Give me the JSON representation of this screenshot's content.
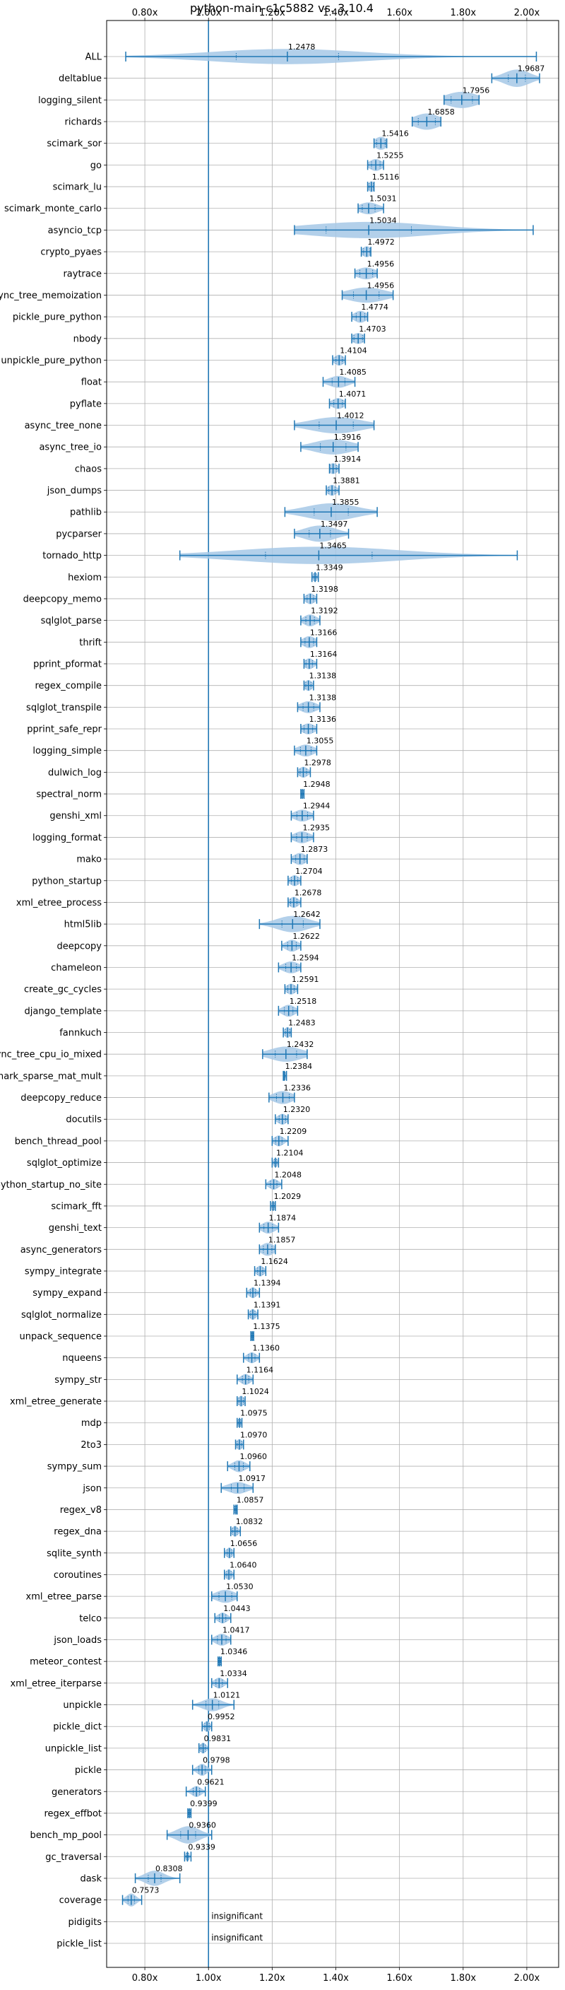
{
  "chart_data": {
    "type": "violin",
    "title": "python-main-c1c5882 vs. 3.10.4",
    "xlabel": "",
    "ylabel": "",
    "xlim": [
      0.68,
      2.1
    ],
    "xticks": [
      0.8,
      1.0,
      1.2,
      1.4,
      1.6,
      1.8,
      2.0
    ],
    "xtick_labels": [
      "0.80x",
      "1.00x",
      "1.20x",
      "1.40x",
      "1.60x",
      "1.80x",
      "2.00x"
    ],
    "xticks_top": true,
    "xticks_bottom": true,
    "grid": true,
    "reference_line": 1.0,
    "accent_color": "#1f77b4",
    "violin_color": "#a6c8e6",
    "note_text": "insignificant",
    "benchmarks": [
      {
        "name": "ALL",
        "value": 1.2478,
        "label": "1.2478",
        "lo": 0.74,
        "hi": 2.03,
        "spread": 0.24,
        "width": 0.7
      },
      {
        "name": "deltablue",
        "value": 1.9687,
        "label": "1.9687",
        "lo": 1.89,
        "hi": 2.04,
        "spread": 0.04,
        "width": 0.8
      },
      {
        "name": "logging_silent",
        "value": 1.7956,
        "label": "1.7956",
        "lo": 1.74,
        "hi": 1.85,
        "spread": 0.05,
        "width": 0.75
      },
      {
        "name": "richards",
        "value": 1.6858,
        "label": "1.6858",
        "lo": 1.64,
        "hi": 1.73,
        "spread": 0.04,
        "width": 0.75
      },
      {
        "name": "scimark_sor",
        "value": 1.5416,
        "label": "1.5416",
        "lo": 1.52,
        "hi": 1.56,
        "spread": 0.02,
        "width": 0.6
      },
      {
        "name": "go",
        "value": 1.5255,
        "label": "1.5255",
        "lo": 1.5,
        "hi": 1.55,
        "spread": 0.02,
        "width": 0.55
      },
      {
        "name": "scimark_lu",
        "value": 1.5116,
        "label": "1.5116",
        "lo": 1.5,
        "hi": 1.52,
        "spread": 0.01,
        "width": 0.5
      },
      {
        "name": "scimark_monte_carlo",
        "value": 1.5031,
        "label": "1.5031",
        "lo": 1.47,
        "hi": 1.55,
        "spread": 0.03,
        "width": 0.55
      },
      {
        "name": "asyncio_tcp",
        "value": 1.5034,
        "label": "1.5034",
        "lo": 1.27,
        "hi": 2.02,
        "spread": 0.2,
        "width": 0.75
      },
      {
        "name": "crypto_pyaes",
        "value": 1.4972,
        "label": "1.4972",
        "lo": 1.48,
        "hi": 1.51,
        "spread": 0.015,
        "width": 0.5
      },
      {
        "name": "raytrace",
        "value": 1.4956,
        "label": "1.4956",
        "lo": 1.46,
        "hi": 1.53,
        "spread": 0.03,
        "width": 0.55
      },
      {
        "name": "async_tree_memoization",
        "value": 1.4956,
        "label": "1.4956",
        "lo": 1.42,
        "hi": 1.58,
        "spread": 0.06,
        "width": 0.7
      },
      {
        "name": "pickle_pure_python",
        "value": 1.4774,
        "label": "1.4774",
        "lo": 1.45,
        "hi": 1.5,
        "spread": 0.02,
        "width": 0.55
      },
      {
        "name": "nbody",
        "value": 1.4703,
        "label": "1.4703",
        "lo": 1.45,
        "hi": 1.49,
        "spread": 0.02,
        "width": 0.5
      },
      {
        "name": "unpickle_pure_python",
        "value": 1.4104,
        "label": "1.4104",
        "lo": 1.39,
        "hi": 1.43,
        "spread": 0.015,
        "width": 0.5
      },
      {
        "name": "float",
        "value": 1.4085,
        "label": "1.4085",
        "lo": 1.36,
        "hi": 1.46,
        "spread": 0.03,
        "width": 0.55
      },
      {
        "name": "pyflate",
        "value": 1.4071,
        "label": "1.4071",
        "lo": 1.38,
        "hi": 1.43,
        "spread": 0.02,
        "width": 0.5
      },
      {
        "name": "async_tree_none",
        "value": 1.4012,
        "label": "1.4012",
        "lo": 1.27,
        "hi": 1.52,
        "spread": 0.08,
        "width": 0.75
      },
      {
        "name": "async_tree_io",
        "value": 1.3916,
        "label": "1.3916",
        "lo": 1.29,
        "hi": 1.47,
        "spread": 0.06,
        "width": 0.7
      },
      {
        "name": "chaos",
        "value": 1.3914,
        "label": "1.3914",
        "lo": 1.38,
        "hi": 1.41,
        "spread": 0.015,
        "width": 0.5
      },
      {
        "name": "json_dumps",
        "value": 1.3881,
        "label": "1.3881",
        "lo": 1.37,
        "hi": 1.41,
        "spread": 0.015,
        "width": 0.5
      },
      {
        "name": "pathlib",
        "value": 1.3855,
        "label": "1.3855",
        "lo": 1.24,
        "hi": 1.53,
        "spread": 0.08,
        "width": 0.8
      },
      {
        "name": "pycparser",
        "value": 1.3497,
        "label": "1.3497",
        "lo": 1.27,
        "hi": 1.44,
        "spread": 0.05,
        "width": 0.75
      },
      {
        "name": "tornado_http",
        "value": 1.3465,
        "label": "1.3465",
        "lo": 0.91,
        "hi": 1.97,
        "spread": 0.25,
        "width": 0.8
      },
      {
        "name": "hexiom",
        "value": 1.3349,
        "label": "1.3349",
        "lo": 1.325,
        "hi": 1.345,
        "spread": 0.006,
        "width": 0.45
      },
      {
        "name": "deepcopy_memo",
        "value": 1.3198,
        "label": "1.3198",
        "lo": 1.3,
        "hi": 1.34,
        "spread": 0.015,
        "width": 0.5
      },
      {
        "name": "sqlglot_parse",
        "value": 1.3192,
        "label": "1.3192",
        "lo": 1.29,
        "hi": 1.35,
        "spread": 0.02,
        "width": 0.55
      },
      {
        "name": "thrift",
        "value": 1.3166,
        "label": "1.3166",
        "lo": 1.29,
        "hi": 1.34,
        "spread": 0.02,
        "width": 0.55
      },
      {
        "name": "pprint_pformat",
        "value": 1.3164,
        "label": "1.3164",
        "lo": 1.3,
        "hi": 1.34,
        "spread": 0.015,
        "width": 0.5
      },
      {
        "name": "regex_compile",
        "value": 1.3138,
        "label": "1.3138",
        "lo": 1.3,
        "hi": 1.33,
        "spread": 0.012,
        "width": 0.5
      },
      {
        "name": "sqlglot_transpile",
        "value": 1.3138,
        "label": "1.3138",
        "lo": 1.28,
        "hi": 1.35,
        "spread": 0.025,
        "width": 0.55
      },
      {
        "name": "pprint_safe_repr",
        "value": 1.3136,
        "label": "1.3136",
        "lo": 1.29,
        "hi": 1.34,
        "spread": 0.02,
        "width": 0.5
      },
      {
        "name": "logging_simple",
        "value": 1.3055,
        "label": "1.3055",
        "lo": 1.27,
        "hi": 1.34,
        "spread": 0.025,
        "width": 0.55
      },
      {
        "name": "dulwich_log",
        "value": 1.2978,
        "label": "1.2978",
        "lo": 1.28,
        "hi": 1.32,
        "spread": 0.015,
        "width": 0.5
      },
      {
        "name": "spectral_norm",
        "value": 1.2948,
        "label": "1.2948",
        "lo": 1.29,
        "hi": 1.3,
        "spread": 0.004,
        "width": 0.45
      },
      {
        "name": "genshi_xml",
        "value": 1.2944,
        "label": "1.2944",
        "lo": 1.26,
        "hi": 1.33,
        "spread": 0.025,
        "width": 0.55
      },
      {
        "name": "logging_format",
        "value": 1.2935,
        "label": "1.2935",
        "lo": 1.26,
        "hi": 1.33,
        "spread": 0.025,
        "width": 0.55
      },
      {
        "name": "mako",
        "value": 1.2873,
        "label": "1.2873",
        "lo": 1.26,
        "hi": 1.31,
        "spread": 0.02,
        "width": 0.55
      },
      {
        "name": "python_startup",
        "value": 1.2704,
        "label": "1.2704",
        "lo": 1.25,
        "hi": 1.29,
        "spread": 0.015,
        "width": 0.5
      },
      {
        "name": "xml_etree_process",
        "value": 1.2678,
        "label": "1.2678",
        "lo": 1.25,
        "hi": 1.29,
        "spread": 0.015,
        "width": 0.5
      },
      {
        "name": "html5lib",
        "value": 1.2642,
        "label": "1.2642",
        "lo": 1.16,
        "hi": 1.35,
        "spread": 0.05,
        "width": 0.75
      },
      {
        "name": "deepcopy",
        "value": 1.2622,
        "label": "1.2622",
        "lo": 1.23,
        "hi": 1.29,
        "spread": 0.02,
        "width": 0.55
      },
      {
        "name": "chameleon",
        "value": 1.2594,
        "label": "1.2594",
        "lo": 1.22,
        "hi": 1.29,
        "spread": 0.025,
        "width": 0.55
      },
      {
        "name": "create_gc_cycles",
        "value": 1.2591,
        "label": "1.2591",
        "lo": 1.24,
        "hi": 1.28,
        "spread": 0.015,
        "width": 0.5
      },
      {
        "name": "django_template",
        "value": 1.2518,
        "label": "1.2518",
        "lo": 1.22,
        "hi": 1.28,
        "spread": 0.02,
        "width": 0.55
      },
      {
        "name": "fannkuch",
        "value": 1.2483,
        "label": "1.2483",
        "lo": 1.235,
        "hi": 1.26,
        "spread": 0.01,
        "width": 0.5
      },
      {
        "name": "async_tree_cpu_io_mixed",
        "value": 1.2432,
        "label": "1.2432",
        "lo": 1.17,
        "hi": 1.31,
        "spread": 0.05,
        "width": 0.7
      },
      {
        "name": "scimark_sparse_mat_mult",
        "value": 1.2384,
        "label": "1.2384",
        "lo": 1.235,
        "hi": 1.245,
        "spread": 0.004,
        "width": 0.45
      },
      {
        "name": "deepcopy_reduce",
        "value": 1.2336,
        "label": "1.2336",
        "lo": 1.19,
        "hi": 1.27,
        "spread": 0.03,
        "width": 0.6
      },
      {
        "name": "docutils",
        "value": 1.232,
        "label": "1.2320",
        "lo": 1.21,
        "hi": 1.25,
        "spread": 0.015,
        "width": 0.5
      },
      {
        "name": "bench_thread_pool",
        "value": 1.2209,
        "label": "1.2209",
        "lo": 1.2,
        "hi": 1.25,
        "spread": 0.015,
        "width": 0.5
      },
      {
        "name": "sqlglot_optimize",
        "value": 1.2104,
        "label": "1.2104",
        "lo": 1.2,
        "hi": 1.22,
        "spread": 0.006,
        "width": 0.45
      },
      {
        "name": "python_startup_no_site",
        "value": 1.2048,
        "label": "1.2048",
        "lo": 1.18,
        "hi": 1.23,
        "spread": 0.015,
        "width": 0.5
      },
      {
        "name": "scimark_fft",
        "value": 1.2029,
        "label": "1.2029",
        "lo": 1.195,
        "hi": 1.21,
        "spread": 0.005,
        "width": 0.45
      },
      {
        "name": "genshi_text",
        "value": 1.1874,
        "label": "1.1874",
        "lo": 1.16,
        "hi": 1.22,
        "spread": 0.02,
        "width": 0.55
      },
      {
        "name": "async_generators",
        "value": 1.1857,
        "label": "1.1857",
        "lo": 1.16,
        "hi": 1.21,
        "spread": 0.02,
        "width": 0.6
      },
      {
        "name": "sympy_integrate",
        "value": 1.1624,
        "label": "1.1624",
        "lo": 1.145,
        "hi": 1.18,
        "spread": 0.012,
        "width": 0.5
      },
      {
        "name": "sympy_expand",
        "value": 1.1394,
        "label": "1.1394",
        "lo": 1.12,
        "hi": 1.16,
        "spread": 0.012,
        "width": 0.5
      },
      {
        "name": "sqlglot_normalize",
        "value": 1.1391,
        "label": "1.1391",
        "lo": 1.125,
        "hi": 1.155,
        "spread": 0.01,
        "width": 0.5
      },
      {
        "name": "unpack_sequence",
        "value": 1.1375,
        "label": "1.1375",
        "lo": 1.133,
        "hi": 1.142,
        "spread": 0.003,
        "width": 0.45
      },
      {
        "name": "nqueens",
        "value": 1.136,
        "label": "1.1360",
        "lo": 1.11,
        "hi": 1.16,
        "spread": 0.015,
        "width": 0.5
      },
      {
        "name": "sympy_str",
        "value": 1.1164,
        "label": "1.1164",
        "lo": 1.09,
        "hi": 1.14,
        "spread": 0.015,
        "width": 0.5
      },
      {
        "name": "xml_etree_generate",
        "value": 1.1024,
        "label": "1.1024",
        "lo": 1.09,
        "hi": 1.115,
        "spread": 0.01,
        "width": 0.5
      },
      {
        "name": "mdp",
        "value": 1.0975,
        "label": "1.0975",
        "lo": 1.09,
        "hi": 1.105,
        "spread": 0.005,
        "width": 0.45
      },
      {
        "name": "2to3",
        "value": 1.097,
        "label": "1.0970",
        "lo": 1.085,
        "hi": 1.11,
        "spread": 0.01,
        "width": 0.5
      },
      {
        "name": "sympy_sum",
        "value": 1.096,
        "label": "1.0960",
        "lo": 1.06,
        "hi": 1.13,
        "spread": 0.02,
        "width": 0.55
      },
      {
        "name": "json",
        "value": 1.0917,
        "label": "1.0917",
        "lo": 1.04,
        "hi": 1.14,
        "spread": 0.03,
        "width": 0.55
      },
      {
        "name": "regex_v8",
        "value": 1.0857,
        "label": "1.0857",
        "lo": 1.08,
        "hi": 1.09,
        "spread": 0.004,
        "width": 0.45
      },
      {
        "name": "regex_dna",
        "value": 1.0832,
        "label": "1.0832",
        "lo": 1.07,
        "hi": 1.1,
        "spread": 0.01,
        "width": 0.5
      },
      {
        "name": "sqlite_synth",
        "value": 1.0656,
        "label": "1.0656",
        "lo": 1.05,
        "hi": 1.08,
        "spread": 0.01,
        "width": 0.5
      },
      {
        "name": "coroutines",
        "value": 1.064,
        "label": "1.0640",
        "lo": 1.05,
        "hi": 1.08,
        "spread": 0.01,
        "width": 0.5
      },
      {
        "name": "xml_etree_parse",
        "value": 1.053,
        "label": "1.0530",
        "lo": 1.01,
        "hi": 1.09,
        "spread": 0.03,
        "width": 0.6
      },
      {
        "name": "telco",
        "value": 1.0443,
        "label": "1.0443",
        "lo": 1.02,
        "hi": 1.07,
        "spread": 0.015,
        "width": 0.5
      },
      {
        "name": "json_loads",
        "value": 1.0417,
        "label": "1.0417",
        "lo": 1.01,
        "hi": 1.07,
        "spread": 0.02,
        "width": 0.55
      },
      {
        "name": "meteor_contest",
        "value": 1.0346,
        "label": "1.0346",
        "lo": 1.03,
        "hi": 1.04,
        "spread": 0.004,
        "width": 0.45
      },
      {
        "name": "xml_etree_iterparse",
        "value": 1.0334,
        "label": "1.0334",
        "lo": 1.01,
        "hi": 1.06,
        "spread": 0.015,
        "width": 0.5
      },
      {
        "name": "unpickle",
        "value": 1.0121,
        "label": "1.0121",
        "lo": 0.95,
        "hi": 1.08,
        "spread": 0.03,
        "width": 0.6
      },
      {
        "name": "pickle_dict",
        "value": 0.9952,
        "label": "0.9952",
        "lo": 0.98,
        "hi": 1.01,
        "spread": 0.01,
        "width": 0.5
      },
      {
        "name": "unpickle_list",
        "value": 0.9831,
        "label": "0.9831",
        "lo": 0.97,
        "hi": 1.0,
        "spread": 0.01,
        "width": 0.5
      },
      {
        "name": "pickle",
        "value": 0.9798,
        "label": "0.9798",
        "lo": 0.95,
        "hi": 1.01,
        "spread": 0.015,
        "width": 0.55
      },
      {
        "name": "generators",
        "value": 0.9621,
        "label": "0.9621",
        "lo": 0.93,
        "hi": 0.99,
        "spread": 0.015,
        "width": 0.5
      },
      {
        "name": "regex_effbot",
        "value": 0.9399,
        "label": "0.9399",
        "lo": 0.935,
        "hi": 0.945,
        "spread": 0.004,
        "width": 0.45
      },
      {
        "name": "bench_mp_pool",
        "value": 0.936,
        "label": "0.9360",
        "lo": 0.87,
        "hi": 1.01,
        "spread": 0.035,
        "width": 0.8
      },
      {
        "name": "gc_traversal",
        "value": 0.9339,
        "label": "0.9339",
        "lo": 0.925,
        "hi": 0.945,
        "spread": 0.005,
        "width": 0.45
      },
      {
        "name": "dask",
        "value": 0.8308,
        "label": "0.8308",
        "lo": 0.77,
        "hi": 0.91,
        "spread": 0.03,
        "width": 0.7
      },
      {
        "name": "coverage",
        "value": 0.7573,
        "label": "0.7573",
        "lo": 0.73,
        "hi": 0.79,
        "spread": 0.015,
        "width": 0.6
      },
      {
        "name": "pidigits",
        "value": null,
        "label": "insignificant",
        "lo": null,
        "hi": null,
        "spread": null,
        "width": null
      },
      {
        "name": "pickle_list",
        "value": null,
        "label": "insignificant",
        "lo": null,
        "hi": null,
        "spread": null,
        "width": null
      }
    ]
  }
}
